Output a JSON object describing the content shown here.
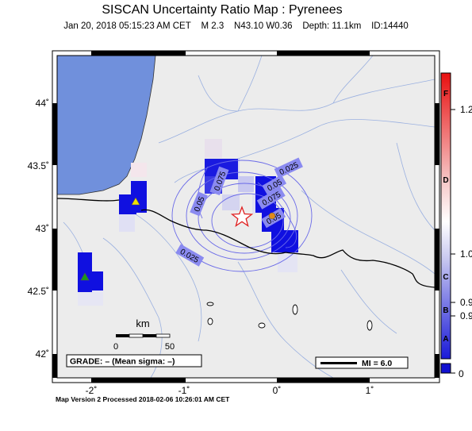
{
  "title": "SISCAN Uncertainty Ratio Map : Pyrenees",
  "subtitle": {
    "date": "Jan 20, 2018 05:15:23 AM CET",
    "magnitude": "M 2.3",
    "location": "N43.10 W0.36",
    "depth": "Depth: 11.1km",
    "id": "ID:14440"
  },
  "map": {
    "lat_labels": [
      "44˚",
      "43.5˚",
      "43˚",
      "42.5˚",
      "42˚"
    ],
    "lon_labels": [
      "-2˚",
      "-1˚",
      "0˚",
      "1˚"
    ],
    "contour_labels": [
      "0.025",
      "0.075",
      "0.05",
      "0.05",
      "0.075",
      "0.05",
      "0.025"
    ],
    "epicenter_marker": "star-icon",
    "scalebar": {
      "unit": "km",
      "min": "0",
      "max": "50"
    },
    "grade": "GRADE: – (Mean sigma: –)",
    "mi_legend": "MI = 6.0"
  },
  "colorbar": {
    "letters": [
      "F",
      "D",
      "C",
      "B",
      "A"
    ],
    "values": [
      "1.2",
      "1.0",
      "0.9",
      "0.9",
      "0"
    ]
  },
  "footer": "Map Version 2 Processed 2018-02-06 10:26:01 AM CET",
  "colors": {
    "sea": "#7090dc",
    "land": "#ececec",
    "cell_blue": "#1010e0",
    "star": "#e02020",
    "station_yellow": "#f0e000",
    "station_green": "#1a9a1a",
    "station_orange": "#e08a1a"
  }
}
